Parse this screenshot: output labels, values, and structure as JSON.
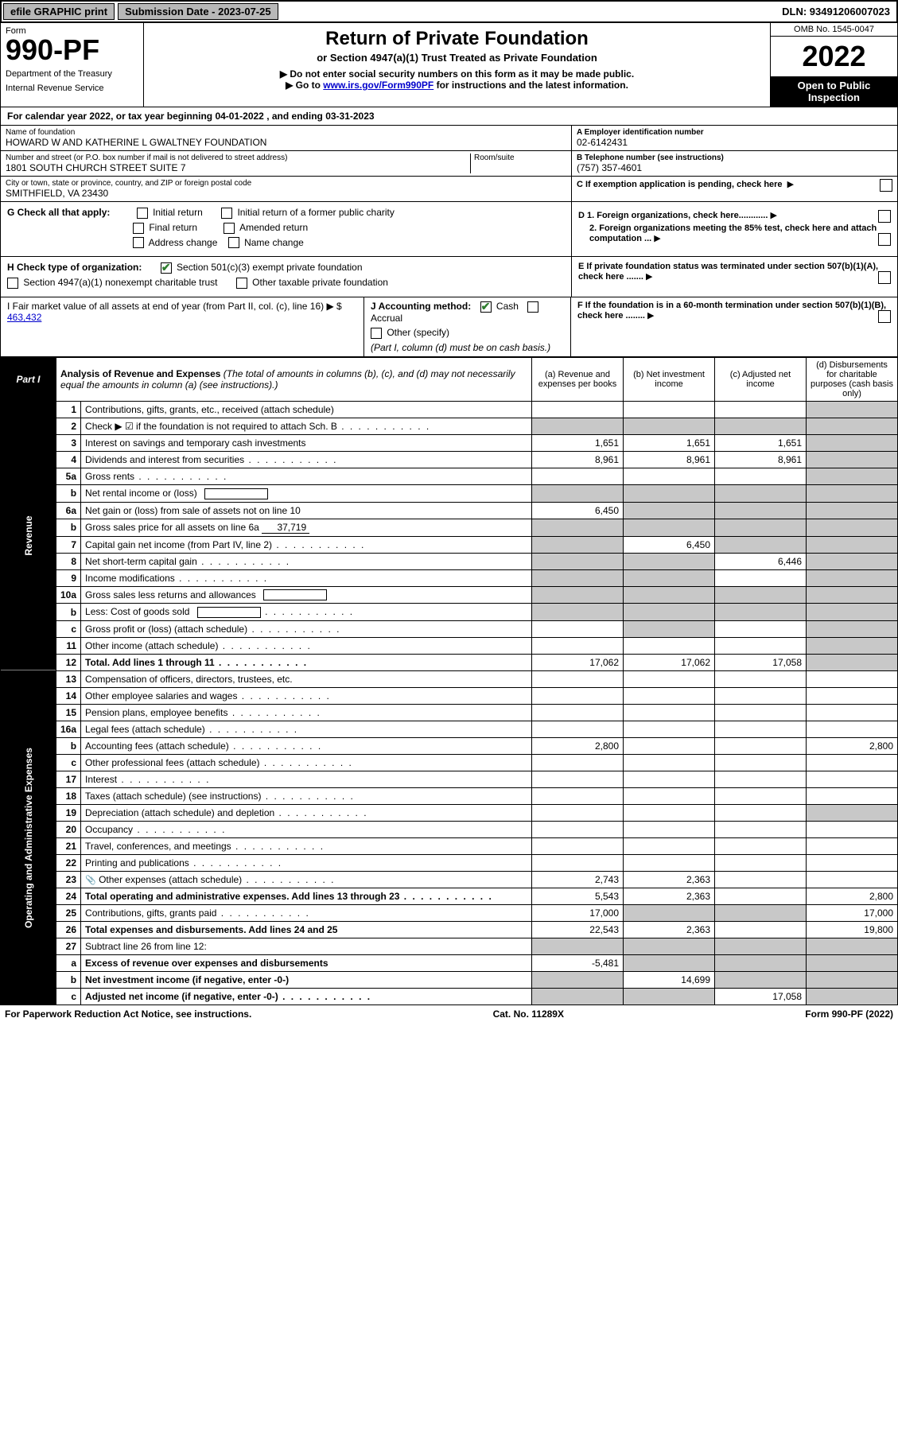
{
  "colors": {
    "header_gray": "#b8b8b8",
    "shade": "#c8c8c8",
    "black": "#000000",
    "white": "#ffffff",
    "link": "#0000cc",
    "check_green": "#2e7d2e"
  },
  "topbar": {
    "efile": "efile GRAPHIC print",
    "submission": "Submission Date - 2023-07-25",
    "dln": "DLN: 93491206007023"
  },
  "header": {
    "form_label": "Form",
    "form_number": "990-PF",
    "dept1": "Department of the Treasury",
    "dept2": "Internal Revenue Service",
    "title": "Return of Private Foundation",
    "subtitle": "or Section 4947(a)(1) Trust Treated as Private Foundation",
    "note1": "▶ Do not enter social security numbers on this form as it may be made public.",
    "note2_pre": "▶ Go to ",
    "note2_link": "www.irs.gov/Form990PF",
    "note2_post": " for instructions and the latest information.",
    "omb": "OMB No. 1545-0047",
    "year": "2022",
    "open": "Open to Public Inspection"
  },
  "cal_year": {
    "text_pre": "For calendar year 2022, or tax year beginning ",
    "begin": "04-01-2022",
    "text_mid": ", and ending ",
    "end": "03-31-2023"
  },
  "identity": {
    "name_label": "Name of foundation",
    "name": "HOWARD W AND KATHERINE L GWALTNEY FOUNDATION",
    "addr_label": "Number and street (or P.O. box number if mail is not delivered to street address)",
    "addr": "1801 SOUTH CHURCH STREET SUITE 7",
    "room_label": "Room/suite",
    "city_label": "City or town, state or province, country, and ZIP or foreign postal code",
    "city": "SMITHFIELD, VA  23430",
    "ein_label": "A Employer identification number",
    "ein": "02-6142431",
    "phone_label": "B Telephone number (see instructions)",
    "phone": "(757) 357-4601",
    "c_label": "C If exemption application is pending, check here"
  },
  "checks": {
    "g_label": "G Check all that apply:",
    "g_opts": [
      "Initial return",
      "Initial return of a former public charity",
      "Final return",
      "Amended return",
      "Address change",
      "Name change"
    ],
    "h_label": "H Check type of organization:",
    "h_checked": "Section 501(c)(3) exempt private foundation",
    "h_opts": [
      "Section 4947(a)(1) nonexempt charitable trust",
      "Other taxable private foundation"
    ],
    "d1": "D 1. Foreign organizations, check here............",
    "d2": "2. Foreign organizations meeting the 85% test, check here and attach computation ...",
    "e": "E  If private foundation status was terminated under section 507(b)(1)(A), check here .......",
    "i_label": "I Fair market value of all assets at end of year (from Part II, col. (c), line 16) ▶ $",
    "i_value": "463,432",
    "j_label": "J Accounting method:",
    "j_cash": "Cash",
    "j_accrual": "Accrual",
    "j_other": "Other (specify)",
    "j_note": "(Part I, column (d) must be on cash basis.)",
    "f": "F  If the foundation is in a 60-month termination under section 507(b)(1)(B), check here ........"
  },
  "part1": {
    "label": "Part I",
    "title": "Analysis of Revenue and Expenses",
    "note": "(The total of amounts in columns (b), (c), and (d) may not necessarily equal the amounts in column (a) (see instructions).)",
    "col_a": "(a)  Revenue and expenses per books",
    "col_b": "(b)  Net investment income",
    "col_c": "(c)  Adjusted net income",
    "col_d": "(d)  Disbursements for charitable purposes (cash basis only)"
  },
  "side": {
    "revenue": "Revenue",
    "expenses": "Operating and Administrative Expenses"
  },
  "rows": [
    {
      "n": "1",
      "desc": "Contributions, gifts, grants, etc., received (attach schedule)",
      "a": "",
      "b": "",
      "c": "",
      "d": "",
      "d_shade": true
    },
    {
      "n": "2",
      "desc": "Check ▶ ☑ if the foundation is not required to attach Sch. B",
      "dots": true,
      "a": "",
      "b": "",
      "c": "",
      "d": "",
      "b_shade": true,
      "c_shade": true,
      "d_shade": true,
      "a_shade": true
    },
    {
      "n": "3",
      "desc": "Interest on savings and temporary cash investments",
      "a": "1,651",
      "b": "1,651",
      "c": "1,651",
      "d": "",
      "d_shade": true
    },
    {
      "n": "4",
      "desc": "Dividends and interest from securities",
      "dots": true,
      "a": "8,961",
      "b": "8,961",
      "c": "8,961",
      "d": "",
      "d_shade": true
    },
    {
      "n": "5a",
      "desc": "Gross rents",
      "dots": true,
      "a": "",
      "b": "",
      "c": "",
      "d": "",
      "d_shade": true
    },
    {
      "n": "b",
      "desc": "Net rental income or (loss)",
      "box": true,
      "a": "",
      "b": "",
      "c": "",
      "d": "",
      "a_shade": true,
      "b_shade": true,
      "c_shade": true,
      "d_shade": true
    },
    {
      "n": "6a",
      "desc": "Net gain or (loss) from sale of assets not on line 10",
      "a": "6,450",
      "b": "",
      "c": "",
      "d": "",
      "b_shade": true,
      "c_shade": true,
      "d_shade": true
    },
    {
      "n": "b",
      "desc": "Gross sales price for all assets on line 6a",
      "uval": "37,719",
      "a": "",
      "b": "",
      "c": "",
      "d": "",
      "a_shade": true,
      "b_shade": true,
      "c_shade": true,
      "d_shade": true
    },
    {
      "n": "7",
      "desc": "Capital gain net income (from Part IV, line 2)",
      "dots": true,
      "a": "",
      "b": "6,450",
      "c": "",
      "d": "",
      "a_shade": true,
      "c_shade": true,
      "d_shade": true
    },
    {
      "n": "8",
      "desc": "Net short-term capital gain",
      "dots": true,
      "a": "",
      "b": "",
      "c": "6,446",
      "d": "",
      "a_shade": true,
      "b_shade": true,
      "d_shade": true
    },
    {
      "n": "9",
      "desc": "Income modifications",
      "dots": true,
      "a": "",
      "b": "",
      "c": "",
      "d": "",
      "a_shade": true,
      "b_shade": true,
      "d_shade": true
    },
    {
      "n": "10a",
      "desc": "Gross sales less returns and allowances",
      "box": true,
      "a": "",
      "b": "",
      "c": "",
      "d": "",
      "a_shade": true,
      "b_shade": true,
      "c_shade": true,
      "d_shade": true
    },
    {
      "n": "b",
      "desc": "Less: Cost of goods sold",
      "dots": true,
      "box": true,
      "a": "",
      "b": "",
      "c": "",
      "d": "",
      "a_shade": true,
      "b_shade": true,
      "c_shade": true,
      "d_shade": true
    },
    {
      "n": "c",
      "desc": "Gross profit or (loss) (attach schedule)",
      "dots": true,
      "a": "",
      "b": "",
      "c": "",
      "d": "",
      "b_shade": true,
      "d_shade": true
    },
    {
      "n": "11",
      "desc": "Other income (attach schedule)",
      "dots": true,
      "a": "",
      "b": "",
      "c": "",
      "d": "",
      "d_shade": true
    },
    {
      "n": "12",
      "desc": "Total. Add lines 1 through 11",
      "dots": true,
      "bold": true,
      "a": "17,062",
      "b": "17,062",
      "c": "17,058",
      "d": "",
      "d_shade": true
    }
  ],
  "exp_rows": [
    {
      "n": "13",
      "desc": "Compensation of officers, directors, trustees, etc.",
      "a": "",
      "b": "",
      "c": "",
      "d": ""
    },
    {
      "n": "14",
      "desc": "Other employee salaries and wages",
      "dots": true,
      "a": "",
      "b": "",
      "c": "",
      "d": ""
    },
    {
      "n": "15",
      "desc": "Pension plans, employee benefits",
      "dots": true,
      "a": "",
      "b": "",
      "c": "",
      "d": ""
    },
    {
      "n": "16a",
      "desc": "Legal fees (attach schedule)",
      "dots": true,
      "a": "",
      "b": "",
      "c": "",
      "d": ""
    },
    {
      "n": "b",
      "desc": "Accounting fees (attach schedule)",
      "dots": true,
      "a": "2,800",
      "b": "",
      "c": "",
      "d": "2,800"
    },
    {
      "n": "c",
      "desc": "Other professional fees (attach schedule)",
      "dots": true,
      "a": "",
      "b": "",
      "c": "",
      "d": ""
    },
    {
      "n": "17",
      "desc": "Interest",
      "dots": true,
      "a": "",
      "b": "",
      "c": "",
      "d": ""
    },
    {
      "n": "18",
      "desc": "Taxes (attach schedule) (see instructions)",
      "dots": true,
      "a": "",
      "b": "",
      "c": "",
      "d": ""
    },
    {
      "n": "19",
      "desc": "Depreciation (attach schedule) and depletion",
      "dots": true,
      "a": "",
      "b": "",
      "c": "",
      "d": "",
      "d_shade": true
    },
    {
      "n": "20",
      "desc": "Occupancy",
      "dots": true,
      "a": "",
      "b": "",
      "c": "",
      "d": ""
    },
    {
      "n": "21",
      "desc": "Travel, conferences, and meetings",
      "dots": true,
      "a": "",
      "b": "",
      "c": "",
      "d": ""
    },
    {
      "n": "22",
      "desc": "Printing and publications",
      "dots": true,
      "a": "",
      "b": "",
      "c": "",
      "d": ""
    },
    {
      "n": "23",
      "desc": "Other expenses (attach schedule)",
      "dots": true,
      "icon": true,
      "a": "2,743",
      "b": "2,363",
      "c": "",
      "d": ""
    },
    {
      "n": "24",
      "desc": "Total operating and administrative expenses. Add lines 13 through 23",
      "dots": true,
      "bold": true,
      "a": "5,543",
      "b": "2,363",
      "c": "",
      "d": "2,800"
    },
    {
      "n": "25",
      "desc": "Contributions, gifts, grants paid",
      "dots": true,
      "a": "17,000",
      "b": "",
      "c": "",
      "d": "17,000",
      "b_shade": true,
      "c_shade": true
    },
    {
      "n": "26",
      "desc": "Total expenses and disbursements. Add lines 24 and 25",
      "bold": true,
      "a": "22,543",
      "b": "2,363",
      "c": "",
      "d": "19,800"
    },
    {
      "n": "27",
      "desc": "Subtract line 26 from line 12:",
      "a": "",
      "b": "",
      "c": "",
      "d": "",
      "a_shade": true,
      "b_shade": true,
      "c_shade": true,
      "d_shade": true
    },
    {
      "n": "a",
      "desc": "Excess of revenue over expenses and disbursements",
      "bold": true,
      "a": "-5,481",
      "b": "",
      "c": "",
      "d": "",
      "b_shade": true,
      "c_shade": true,
      "d_shade": true
    },
    {
      "n": "b",
      "desc": "Net investment income (if negative, enter -0-)",
      "bold": true,
      "a": "",
      "b": "14,699",
      "c": "",
      "d": "",
      "a_shade": true,
      "c_shade": true,
      "d_shade": true
    },
    {
      "n": "c",
      "desc": "Adjusted net income (if negative, enter -0-)",
      "dots": true,
      "bold": true,
      "a": "",
      "b": "",
      "c": "17,058",
      "d": "",
      "a_shade": true,
      "b_shade": true,
      "d_shade": true
    }
  ],
  "footer": {
    "left": "For Paperwork Reduction Act Notice, see instructions.",
    "mid": "Cat. No. 11289X",
    "right": "Form 990-PF (2022)"
  }
}
